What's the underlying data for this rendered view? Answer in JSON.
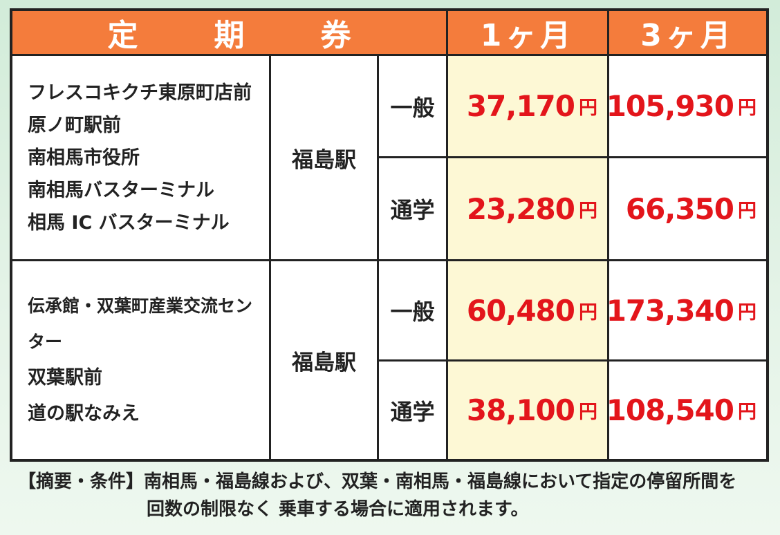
{
  "header": {
    "title_chars": [
      "定",
      "期",
      "券"
    ],
    "col_1month": "1ヶ月",
    "col_3month": "3ヶ月"
  },
  "groups": [
    {
      "stops": [
        "フレスコキクチ東原町店前",
        "原ノ町駅前",
        "南相馬市役所",
        "南相馬バスターミナル",
        "相馬 IC バスターミナル"
      ],
      "station": "福島駅",
      "rows": [
        {
          "type": "一般",
          "m1": "37,170",
          "m3": "105,930"
        },
        {
          "type": "通学",
          "m1": "23,280",
          "m3": "66,350"
        }
      ]
    },
    {
      "stops": [
        "伝承館・双葉町産業交流センター",
        "双葉駅前",
        "道の駅なみえ"
      ],
      "station": "福島駅",
      "rows": [
        {
          "type": "一般",
          "m1": "60,480",
          "m3": "173,340"
        },
        {
          "type": "通学",
          "m1": "38,100",
          "m3": "108,540"
        }
      ]
    }
  ],
  "yen": "円",
  "footer": {
    "line1": "【摘要・条件】南相馬・福島線および、双葉・南相馬・福島線において指定の停留所間を",
    "line2": "回数の制限なく 乗車する場合に適用されます。"
  },
  "colors": {
    "header_bg": "#f47c3c",
    "price_red": "#e3151b",
    "month1_bg": "#fdf8d5",
    "background": "#d2ecd9"
  }
}
